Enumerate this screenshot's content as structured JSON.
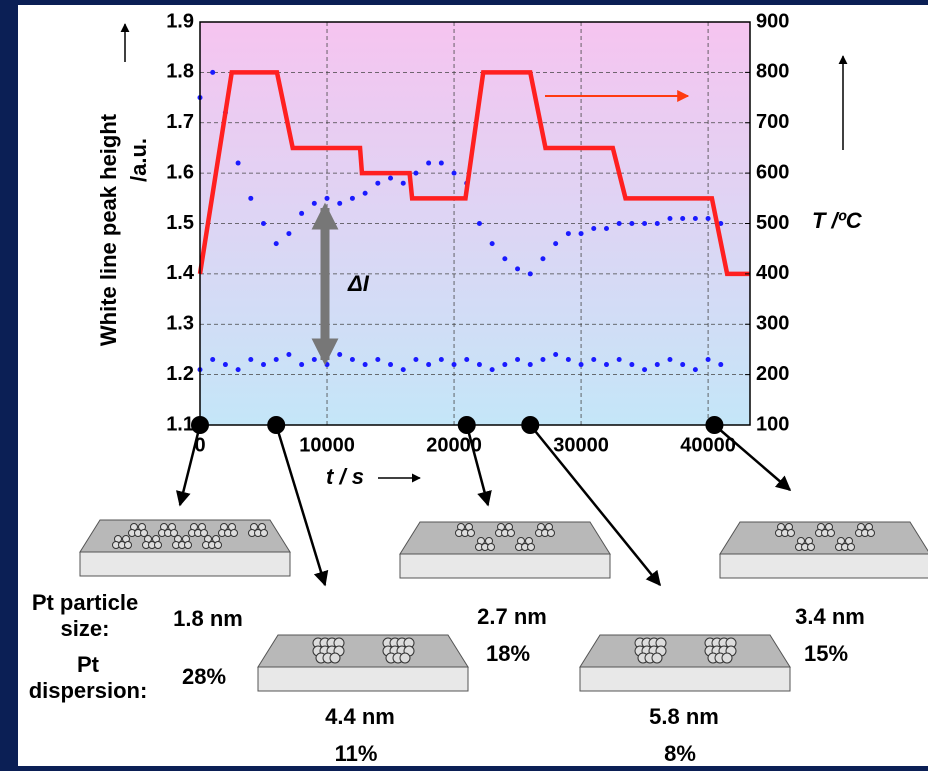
{
  "chart_data": {
    "type": "scatter",
    "xlabel": "t / s",
    "ylabel": "White line peak height",
    "ylabel_unit": "/a.u.",
    "y2label": "T /ºC",
    "annotation": "ΔI",
    "xlim": [
      0,
      43300
    ],
    "xticks": [
      0,
      10000,
      20000,
      30000,
      40000
    ],
    "ylim": [
      1.1,
      1.9
    ],
    "yticks": [
      1.1,
      1.2,
      1.3,
      1.4,
      1.5,
      1.6,
      1.7,
      1.8,
      1.9
    ],
    "y2lim": [
      100,
      900
    ],
    "y2ticks": [
      100,
      200,
      300,
      400,
      500,
      600,
      700,
      800,
      900
    ],
    "grid": true,
    "series": [
      {
        "color": "#1a1aff",
        "x": [
          0,
          1000,
          2000,
          3000,
          4000,
          5000,
          6000,
          7000,
          8000,
          9000,
          10000,
          11000,
          12000,
          13000,
          14000,
          15000,
          16000,
          17000,
          18000,
          19000,
          20000,
          21000,
          22000,
          23000,
          24000,
          25000,
          26000,
          27000,
          28000,
          29000,
          30000,
          31000,
          32000,
          33000,
          34000,
          35000,
          36000,
          37000,
          38000,
          39000,
          40000,
          41000
        ],
        "values": [
          1.75,
          1.8,
          1.72,
          1.62,
          1.55,
          1.5,
          1.46,
          1.48,
          1.52,
          1.54,
          1.55,
          1.54,
          1.55,
          1.56,
          1.58,
          1.59,
          1.58,
          1.6,
          1.62,
          1.62,
          1.6,
          1.58,
          1.5,
          1.46,
          1.43,
          1.41,
          1.4,
          1.43,
          1.46,
          1.48,
          1.48,
          1.49,
          1.49,
          1.5,
          1.5,
          1.5,
          1.5,
          1.51,
          1.51,
          1.51,
          1.51,
          1.5
        ]
      },
      {
        "color": "#1a1aff",
        "x": [
          0,
          1000,
          2000,
          3000,
          4000,
          5000,
          6000,
          7000,
          8000,
          9000,
          10000,
          11000,
          12000,
          13000,
          14000,
          15000,
          16000,
          17000,
          18000,
          19000,
          20000,
          21000,
          22000,
          23000,
          24000,
          25000,
          26000,
          27000,
          28000,
          29000,
          30000,
          31000,
          32000,
          33000,
          34000,
          35000,
          36000,
          37000,
          38000,
          39000,
          40000,
          41000
        ],
        "values": [
          1.21,
          1.23,
          1.22,
          1.21,
          1.23,
          1.22,
          1.23,
          1.24,
          1.22,
          1.23,
          1.22,
          1.24,
          1.23,
          1.22,
          1.23,
          1.22,
          1.21,
          1.23,
          1.22,
          1.23,
          1.22,
          1.23,
          1.22,
          1.21,
          1.22,
          1.23,
          1.22,
          1.23,
          1.24,
          1.23,
          1.22,
          1.23,
          1.22,
          1.23,
          1.22,
          1.21,
          1.22,
          1.23,
          1.22,
          1.21,
          1.23,
          1.22
        ]
      },
      {
        "type": "line",
        "axis": "y2",
        "color": "#ff2020",
        "x": [
          0,
          2500,
          6060,
          7300,
          12600,
          12750,
          16500,
          16700,
          20900,
          22300,
          26000,
          27200,
          32500,
          33500,
          40300,
          41500,
          43300
        ],
        "values": [
          400,
          800,
          800,
          650,
          650,
          600,
          600,
          550,
          550,
          800,
          800,
          650,
          650,
          550,
          550,
          400,
          400
        ]
      }
    ]
  },
  "samples": [
    {
      "time": 0,
      "size_label": "Pt particle size:",
      "size": "1.8 nm",
      "dispersion_label": "Pt dispersion:",
      "dispersion": "28%"
    },
    {
      "time": 6000,
      "size": "4.4 nm",
      "dispersion": "11%"
    },
    {
      "time": 21000,
      "size": "2.7 nm",
      "dispersion": "18%"
    },
    {
      "time": 26000,
      "size": "5.8 nm",
      "dispersion": "8%"
    },
    {
      "time": 40500,
      "size": "3.4 nm",
      "dispersion": "15%"
    }
  ]
}
